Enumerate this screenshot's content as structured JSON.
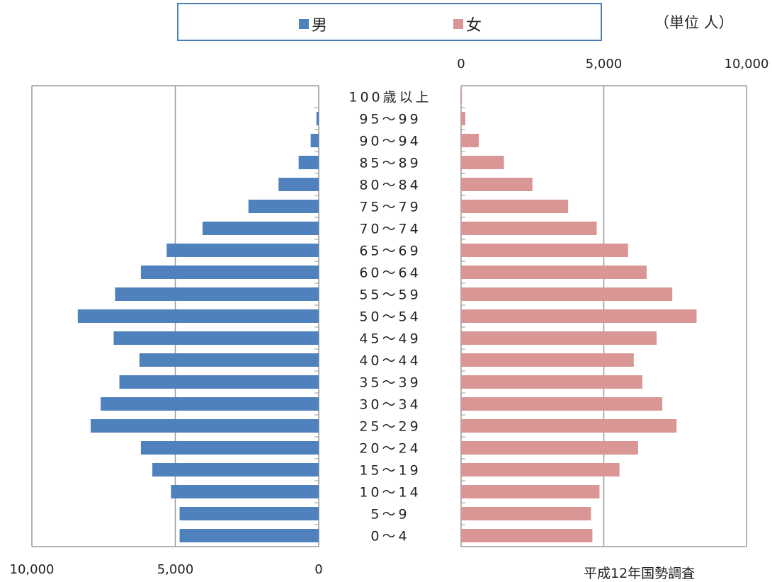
{
  "legend": {
    "male_label": "男",
    "female_label": "女",
    "male_color": "#4f81bd",
    "female_color": "#d99694"
  },
  "unit_label": "（単位  人）",
  "source_note": "平成12年国勢調査",
  "chart_data": {
    "type": "bar",
    "orientation": "horizontal-population-pyramid",
    "categories": [
      "100歳以上",
      "95～99",
      "90～94",
      "85～89",
      "80～84",
      "75～79",
      "70～74",
      "65～69",
      "60～64",
      "55～59",
      "50～54",
      "45～49",
      "40～44",
      "35～39",
      "30～34",
      "25～29",
      "20～24",
      "15～19",
      "10～14",
      "5～9",
      "0～4"
    ],
    "series": [
      {
        "name": "男",
        "color": "#4f81bd",
        "values": [
          5,
          80,
          280,
          700,
          1400,
          2450,
          4050,
          5300,
          6200,
          7100,
          8400,
          7150,
          6250,
          6950,
          7600,
          7950,
          6200,
          5800,
          5150,
          4850,
          4850
        ]
      },
      {
        "name": "女",
        "color": "#d99694",
        "values": [
          30,
          150,
          620,
          1500,
          2500,
          3750,
          4750,
          5850,
          6500,
          7400,
          8250,
          6850,
          6050,
          6350,
          7050,
          7550,
          6200,
          5550,
          4850,
          4550,
          4600
        ]
      }
    ],
    "male_axis": {
      "range": [
        10000,
        0
      ],
      "ticks": [
        "10,000",
        "5,000",
        "0"
      ]
    },
    "female_axis": {
      "range": [
        0,
        10000
      ],
      "ticks": [
        "0",
        "5,000",
        "10,000"
      ]
    },
    "grid": true,
    "legend_position": "top"
  }
}
